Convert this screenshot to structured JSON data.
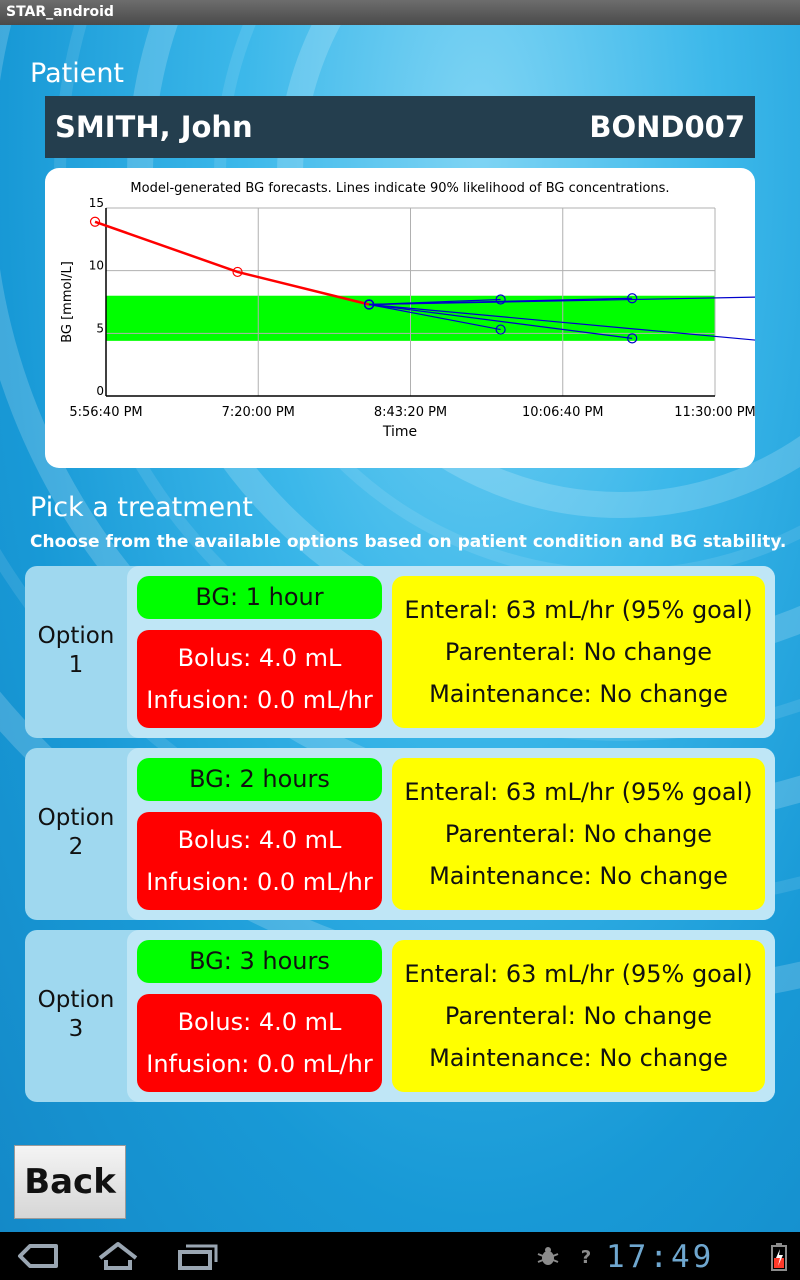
{
  "window": {
    "title": "STAR_android"
  },
  "patient": {
    "section_title": "Patient",
    "name": "SMITH, John",
    "id": "BOND007"
  },
  "chart_data": {
    "type": "line",
    "title": "Model-generated BG forecasts. Lines indicate 90% likelihood of BG concentrations.",
    "xlabel": "Time",
    "ylabel": "BG [mmol/L]",
    "xticks": [
      "5:56:40 PM",
      "7:20:00 PM",
      "8:43:20 PM",
      "10:06:40 PM",
      "11:30:00 PM"
    ],
    "yticks": [
      "0",
      "5",
      "10",
      "15"
    ],
    "ylim": [
      0,
      15
    ],
    "xlim_hours": [
      0,
      5.5556
    ],
    "target_band": {
      "low": 4.4,
      "high": 8.0,
      "color": "#00ff00"
    },
    "series": [
      {
        "color": "#ff0000",
        "x_hours": [
          -0.1,
          1.2,
          2.4
        ],
        "y": [
          13.9,
          9.9,
          7.3
        ]
      },
      {
        "color": "#0000cc",
        "x_hours": [
          2.4,
          3.6
        ],
        "y": [
          7.3,
          7.7
        ]
      },
      {
        "color": "#0000cc",
        "x_hours": [
          2.4,
          3.6
        ],
        "y": [
          7.3,
          5.3
        ]
      },
      {
        "color": "#0000cc",
        "x_hours": [
          2.4,
          4.8
        ],
        "y": [
          7.3,
          7.8
        ]
      },
      {
        "color": "#0000cc",
        "x_hours": [
          2.4,
          4.8
        ],
        "y": [
          7.3,
          4.6
        ]
      },
      {
        "color": "#0000cc",
        "x_hours": [
          2.4,
          6.0
        ],
        "y": [
          7.3,
          7.9
        ]
      },
      {
        "color": "#0000cc",
        "x_hours": [
          2.4,
          6.0
        ],
        "y": [
          7.3,
          4.4
        ]
      }
    ]
  },
  "treatment": {
    "title": "Pick a treatment",
    "subtitle": "Choose from the available options based on patient condition and BG stability.",
    "options": [
      {
        "label_line1": "Option",
        "label_line2": "1",
        "bg": "BG: 1 hour",
        "bolus": "Bolus: 4.0 mL",
        "infusion": "Infusion: 0.0 mL/hr",
        "enteral": "Enteral: 63 mL/hr (95% goal)",
        "parenteral": "Parenteral: No change",
        "maintenance": "Maintenance: No change"
      },
      {
        "label_line1": "Option",
        "label_line2": "2",
        "bg": "BG: 2 hours",
        "bolus": "Bolus: 4.0 mL",
        "infusion": "Infusion: 0.0 mL/hr",
        "enteral": "Enteral: 63 mL/hr (95% goal)",
        "parenteral": "Parenteral: No change",
        "maintenance": "Maintenance: No change"
      },
      {
        "label_line1": "Option",
        "label_line2": "3",
        "bg": "BG: 3 hours",
        "bolus": "Bolus: 4.0 mL",
        "infusion": "Infusion: 0.0 mL/hr",
        "enteral": "Enteral: 63 mL/hr (95% goal)",
        "parenteral": "Parenteral: No change",
        "maintenance": "Maintenance: No change"
      }
    ]
  },
  "back_label": "Back",
  "statusbar": {
    "time": "17:49"
  },
  "icons": [
    "back-icon",
    "home-icon",
    "recent-apps-icon",
    "debug-icon",
    "unknown-status-icon",
    "battery-icon"
  ]
}
